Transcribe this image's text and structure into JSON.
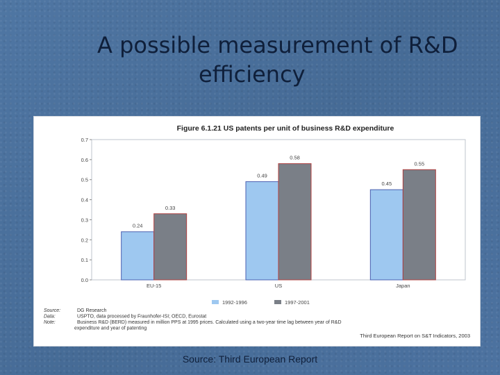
{
  "slide": {
    "title_line1": "A possible measurement of R&D",
    "title_line2": "efficiency",
    "footer_source": "Source: Third European Report"
  },
  "chart_data": {
    "type": "bar",
    "title": "Figure 6.1.21 US patents per unit of business R&D expenditure",
    "categories": [
      "EU-15",
      "US",
      "Japan"
    ],
    "series": [
      {
        "name": "1992-1996",
        "values": [
          0.24,
          0.49,
          0.45
        ],
        "color": "#9ec8f0",
        "border": "#4a5fb0"
      },
      {
        "name": "1997-2001",
        "values": [
          0.33,
          0.58,
          0.55
        ],
        "color": "#7a7f87",
        "border": "#b04040"
      }
    ],
    "ylim": [
      0,
      0.7
    ],
    "yticks": [
      "0.0",
      "0.1",
      "0.2",
      "0.3",
      "0.4",
      "0.5",
      "0.6",
      "0.7"
    ],
    "grid": false,
    "legend_position": "bottom",
    "notes": [
      {
        "label": "Source:",
        "text": "DG Research"
      },
      {
        "label": "Data:",
        "text": "USPTO, data processed by Fraunhofer-ISI; OECD, Eurostat"
      },
      {
        "label": "Note:",
        "text": "Business R&D (BERD) measured in million PPS at 1995 prices. Calculated using a two-year time lag between year of R&D"
      },
      {
        "label": "",
        "text": "expenditure and year of patenting"
      }
    ],
    "credit": "Third European Report on S&T Indicators, 2003"
  }
}
